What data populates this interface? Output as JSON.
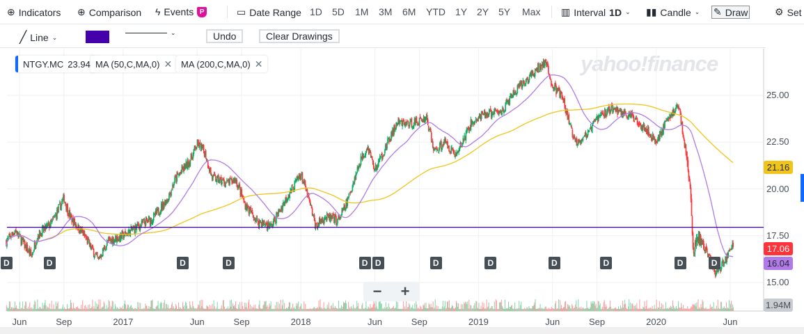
{
  "toolbar": {
    "indicators": "Indicators",
    "comparison": "Comparison",
    "events": "Events",
    "events_badge": "P",
    "date_range": "Date Range",
    "ranges": [
      "1D",
      "5D",
      "1M",
      "3M",
      "6M",
      "YTD",
      "1Y",
      "2Y",
      "5Y",
      "Max"
    ],
    "interval_label": "Interval",
    "interval_value": "1D",
    "chart_type": "Candle",
    "draw": "Draw",
    "settings": "Set"
  },
  "draw_toolbar": {
    "tool": "Line",
    "color": "#4400aa",
    "undo": "Undo",
    "clear": "Clear Drawings"
  },
  "legend": {
    "symbol": "NTGY.MC",
    "price": "23.94",
    "ma50": "MA (50,C,MA,0)",
    "ma200": "MA (200,C,MA,0)"
  },
  "watermark": "yahoo!finance",
  "zoom": {
    "minus": "−",
    "plus": "+"
  },
  "chart_data": {
    "type": "candlestick",
    "symbol": "NTGY.MC",
    "ylim": [
      14.3,
      27.5
    ],
    "y_ticks": [
      "25.00",
      "22.50",
      "20.00",
      "17.50",
      "15.00"
    ],
    "y_tick_values": [
      25,
      22.5,
      20,
      17.5,
      15
    ],
    "x_ticks": [
      "Jun",
      "Sep",
      "2017",
      "Jun",
      "Sep",
      "2018",
      "Jun",
      "Sep",
      "2019",
      "Jun",
      "Sep",
      "2020",
      "Jun"
    ],
    "x_tick_months": [
      0,
      3,
      7,
      12,
      15,
      19,
      24,
      27,
      31,
      36,
      39,
      43,
      48
    ],
    "close_keypoints_months_since_jun2016": [
      [
        -0.9,
        17.2
      ],
      [
        -0.3,
        17.8
      ],
      [
        0.8,
        16.4
      ],
      [
        1.2,
        17.5
      ],
      [
        2.2,
        18.2
      ],
      [
        3,
        19.5
      ],
      [
        3.4,
        18.5
      ],
      [
        4.3,
        17.6
      ],
      [
        5.3,
        16.2
      ],
      [
        6,
        17.2
      ],
      [
        7,
        17.5
      ],
      [
        8,
        18
      ],
      [
        9,
        18.4
      ],
      [
        10,
        19.5
      ],
      [
        10.5,
        20.5
      ],
      [
        11.5,
        21.5
      ],
      [
        12,
        22.4
      ],
      [
        12.5,
        22
      ],
      [
        13,
        20.6
      ],
      [
        14,
        20.3
      ],
      [
        14.6,
        20.5
      ],
      [
        15.2,
        19.2
      ],
      [
        16,
        18.3
      ],
      [
        17,
        18
      ],
      [
        18,
        19.5
      ],
      [
        19,
        20.8
      ],
      [
        19.5,
        19.5
      ],
      [
        20,
        18
      ],
      [
        20.6,
        18.5
      ],
      [
        21.5,
        18.3
      ],
      [
        22,
        19
      ],
      [
        23,
        21.5
      ],
      [
        23.5,
        22.3
      ],
      [
        24,
        21
      ],
      [
        24.6,
        22
      ],
      [
        25.5,
        23.5
      ],
      [
        26.5,
        23.5
      ],
      [
        27.5,
        23.8
      ],
      [
        28,
        22
      ],
      [
        28.7,
        22.5
      ],
      [
        29.5,
        21.8
      ],
      [
        30.5,
        23.5
      ],
      [
        31.5,
        24
      ],
      [
        32.5,
        24.1
      ],
      [
        33.5,
        25.2
      ],
      [
        34.5,
        26
      ],
      [
        35.5,
        26.8
      ],
      [
        36,
        25.5
      ],
      [
        36.6,
        25
      ],
      [
        37.5,
        22.5
      ],
      [
        38.5,
        23
      ],
      [
        39,
        23.8
      ],
      [
        40,
        24.3
      ],
      [
        41,
        24
      ],
      [
        42,
        23.5
      ],
      [
        43,
        22.5
      ],
      [
        43.6,
        23.5
      ],
      [
        44.5,
        24.5
      ],
      [
        45,
        22
      ],
      [
        45.3,
        20
      ],
      [
        45.5,
        16.5
      ],
      [
        45.8,
        17.5
      ],
      [
        46.5,
        16.5
      ],
      [
        47,
        15.5
      ],
      [
        47.5,
        16
      ],
      [
        48.2,
        17.06
      ]
    ],
    "horizontal_line": 17.95,
    "badges": {
      "ma200": "21.16",
      "price": "17.06",
      "ma50": "16.04",
      "volume": "1.94M"
    },
    "dividend_label": "D",
    "dividend_months": [
      -0.9,
      2,
      11,
      14.1,
      23.3,
      24.2,
      28.1,
      31.8,
      36.1,
      39.6,
      44.6,
      46.9
    ],
    "colors": {
      "up": "#00b061",
      "down": "#ff333a",
      "ma50": "#b07ae8",
      "ma200": "#f0c419",
      "drawn_line": "#4400aa"
    }
  }
}
